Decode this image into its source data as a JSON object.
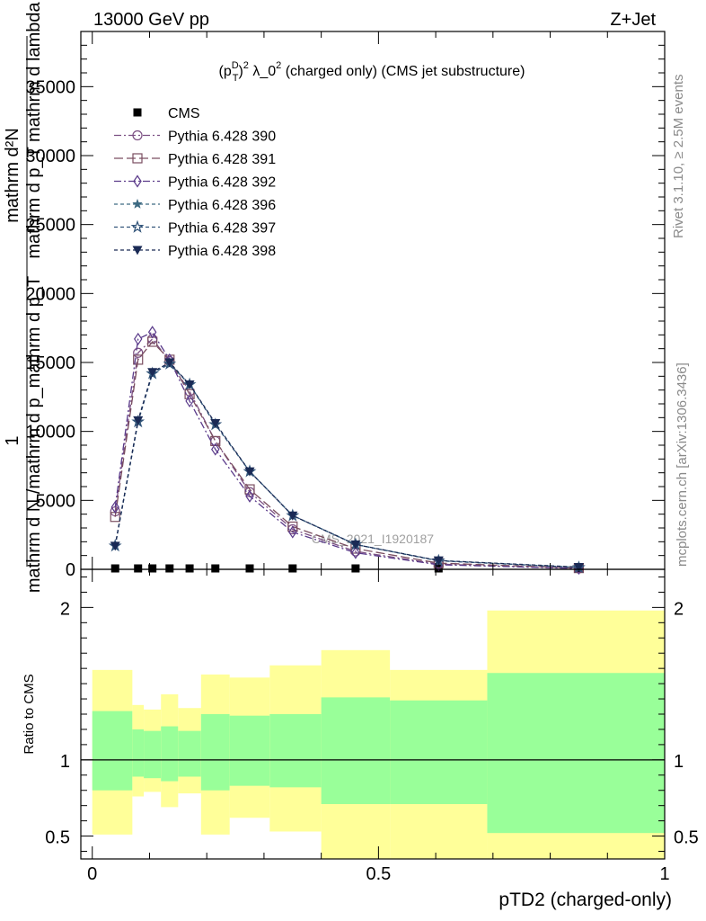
{
  "header": {
    "energy_label": "13000 GeV pp",
    "process_label": "Z+Jet"
  },
  "side_labels": {
    "rivet": "Rivet 3.1.10, ≥ 2.5M events",
    "mcplots": "mcplots.cern.ch [arXiv:1306.3436]"
  },
  "chart_data": [
    {
      "type": "line",
      "title": "(p_T^D)^2 λ_0^2 (charged only) (CMS jet substructure)",
      "title_parts": {
        "p": "(p",
        "sub": "T",
        "sup": "D",
        "rest": ")",
        "sup2": "2",
        "tail": " λ_0",
        "sup3": "2",
        "end": " (charged only) (CMS jet substructure)"
      },
      "ylabel_lines": [
        "1",
        "mathrm d N /mathrm d p_mathrm d p_T",
        "mathrm d²N",
        "mathrm d p_T mathrm d lambda"
      ],
      "ylim": [
        0,
        39000
      ],
      "xlim": [
        -0.02,
        1.0
      ],
      "yticks": [
        0,
        5000,
        10000,
        15000,
        20000,
        25000,
        30000,
        35000
      ],
      "ytick_labels": [
        "0",
        "5000",
        "10000",
        "15000",
        "20000",
        "25000",
        "30000",
        "35000"
      ],
      "watermark": "CMS_2021_I1920187",
      "x": [
        0.04,
        0.08,
        0.105,
        0.135,
        0.17,
        0.215,
        0.275,
        0.35,
        0.46,
        0.605,
        0.85
      ],
      "series": [
        {
          "name": "CMS",
          "color": "#000000",
          "marker": "filled-square",
          "dash": "none",
          "values": [
            0,
            0,
            0,
            0,
            0,
            0,
            0,
            0,
            0,
            0,
            0
          ]
        },
        {
          "name": "Pythia 6.428 390",
          "color": "#7b4f82",
          "marker": "open-circle",
          "dash": "8,3,2,3",
          "values": [
            4200,
            15700,
            16700,
            15100,
            12900,
            9300,
            5600,
            2900,
            1300,
            380,
            70
          ]
        },
        {
          "name": "Pythia 6.428 391",
          "color": "#7a4e60",
          "marker": "open-square",
          "dash": "10,4",
          "values": [
            3800,
            15200,
            16500,
            15200,
            12700,
            9300,
            5800,
            3100,
            1500,
            450,
            90
          ]
        },
        {
          "name": "Pythia 6.428 392",
          "color": "#5a3a8a",
          "marker": "open-diamond",
          "dash": "8,3,2,3",
          "values": [
            4500,
            16700,
            17200,
            15200,
            12200,
            8700,
            5300,
            2700,
            1200,
            330,
            60
          ]
        },
        {
          "name": "Pythia 6.428 396",
          "color": "#3d6a82",
          "marker": "star",
          "dash": "4,3",
          "values": [
            1700,
            10700,
            14200,
            14900,
            13400,
            10500,
            7100,
            3900,
            1800,
            620,
            140
          ]
        },
        {
          "name": "Pythia 6.428 397",
          "color": "#33557a",
          "marker": "open-star",
          "dash": "4,3",
          "values": [
            1700,
            10700,
            14200,
            14900,
            13400,
            10500,
            7100,
            3900,
            1800,
            620,
            140
          ]
        },
        {
          "name": "Pythia 6.428 398",
          "color": "#1a2a55",
          "marker": "filled-triangle-down",
          "dash": "4,3",
          "values": [
            1700,
            10800,
            14300,
            15000,
            13400,
            10600,
            7100,
            3900,
            1800,
            640,
            160
          ]
        }
      ]
    },
    {
      "type": "area",
      "ylabel": "Ratio to CMS",
      "xlabel": "pTD2 (charged-only)",
      "ylim": [
        0.35,
        2.25
      ],
      "xlim": [
        -0.02,
        1.0
      ],
      "yticks": [
        0.5,
        1,
        2
      ],
      "ytick_labels": [
        "0.5",
        "1",
        "2"
      ],
      "xticks": [
        0,
        0.5,
        1
      ],
      "xtick_labels": [
        "0",
        "0.5",
        "1"
      ],
      "bin_edges": [
        0.0,
        0.07,
        0.09,
        0.12,
        0.15,
        0.19,
        0.24,
        0.31,
        0.4,
        0.52,
        0.69,
        1.0
      ],
      "band_inner_color": "#99ff99",
      "band_outer_color": "#ffff99",
      "inner_low": [
        0.8,
        0.89,
        0.88,
        0.86,
        0.89,
        0.8,
        0.83,
        0.82,
        0.71,
        0.71,
        0.52
      ],
      "inner_high": [
        1.32,
        1.2,
        1.19,
        1.22,
        1.19,
        1.3,
        1.29,
        1.3,
        1.41,
        1.39,
        1.57
      ],
      "outer_low": [
        0.51,
        0.76,
        0.79,
        0.69,
        0.78,
        0.51,
        0.62,
        0.53,
        0.35,
        0.35,
        0.35
      ],
      "outer_high": [
        1.59,
        1.36,
        1.33,
        1.43,
        1.34,
        1.56,
        1.54,
        1.62,
        1.72,
        1.59,
        1.98
      ],
      "reference_line": 1
    }
  ]
}
